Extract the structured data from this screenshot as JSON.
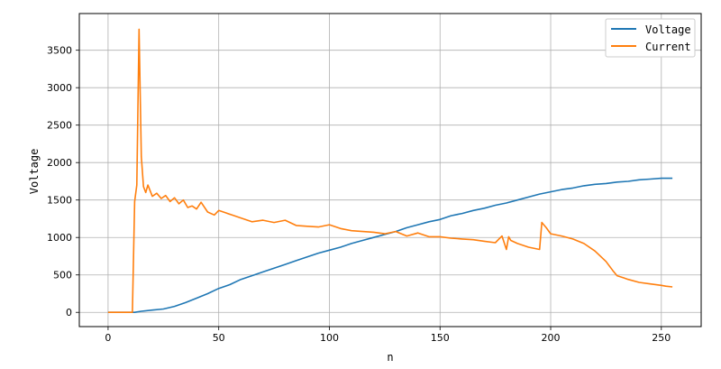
{
  "chart_data": {
    "type": "line",
    "xlabel": "n",
    "ylabel": "Voltage",
    "xlim": [
      -13,
      268
    ],
    "ylim": [
      -190,
      3990
    ],
    "xticks": [
      0,
      50,
      100,
      150,
      200,
      250
    ],
    "yticks": [
      0,
      500,
      1000,
      1500,
      2000,
      2500,
      3000,
      3500
    ],
    "grid": true,
    "legend_position": "top-right",
    "series": [
      {
        "name": "Voltage",
        "color": "#1f77b4",
        "x": [
          0,
          5,
          10,
          12,
          15,
          20,
          25,
          30,
          35,
          40,
          45,
          50,
          55,
          60,
          65,
          70,
          75,
          80,
          85,
          90,
          95,
          100,
          105,
          110,
          115,
          120,
          125,
          130,
          135,
          140,
          145,
          150,
          155,
          160,
          165,
          170,
          175,
          180,
          185,
          190,
          195,
          200,
          205,
          210,
          215,
          220,
          225,
          230,
          235,
          240,
          245,
          250,
          255
        ],
        "values": [
          0,
          0,
          0,
          0,
          15,
          30,
          45,
          80,
          130,
          190,
          250,
          320,
          370,
          440,
          490,
          540,
          590,
          640,
          690,
          740,
          790,
          830,
          870,
          920,
          960,
          1000,
          1040,
          1080,
          1130,
          1170,
          1210,
          1240,
          1290,
          1320,
          1360,
          1390,
          1430,
          1460,
          1500,
          1540,
          1580,
          1610,
          1640,
          1660,
          1690,
          1710,
          1720,
          1740,
          1750,
          1770,
          1780,
          1790,
          1790
        ]
      },
      {
        "name": "Current",
        "color": "#ff7f0e",
        "x": [
          0,
          5,
          10,
          11,
          12,
          13,
          14,
          15,
          16,
          17,
          18,
          20,
          22,
          24,
          26,
          28,
          30,
          32,
          34,
          36,
          38,
          40,
          42,
          45,
          48,
          50,
          53,
          56,
          60,
          65,
          70,
          75,
          80,
          85,
          90,
          95,
          100,
          105,
          110,
          115,
          120,
          125,
          130,
          135,
          140,
          145,
          150,
          155,
          160,
          165,
          170,
          175,
          178,
          180,
          181,
          182,
          185,
          190,
          195,
          196,
          198,
          200,
          205,
          210,
          215,
          220,
          225,
          228,
          230,
          233,
          235,
          240,
          245,
          250,
          252,
          255
        ],
        "values": [
          0,
          0,
          0,
          0,
          1480,
          1700,
          3780,
          2080,
          1680,
          1600,
          1700,
          1550,
          1590,
          1520,
          1560,
          1480,
          1530,
          1450,
          1500,
          1400,
          1420,
          1380,
          1470,
          1340,
          1300,
          1360,
          1330,
          1300,
          1260,
          1210,
          1230,
          1200,
          1230,
          1160,
          1150,
          1140,
          1170,
          1120,
          1090,
          1080,
          1070,
          1050,
          1080,
          1020,
          1060,
          1010,
          1010,
          990,
          980,
          970,
          950,
          930,
          1020,
          840,
          1010,
          960,
          920,
          870,
          840,
          1200,
          1130,
          1050,
          1020,
          980,
          920,
          820,
          680,
          560,
          490,
          460,
          440,
          400,
          380,
          360,
          350,
          340
        ]
      }
    ]
  }
}
